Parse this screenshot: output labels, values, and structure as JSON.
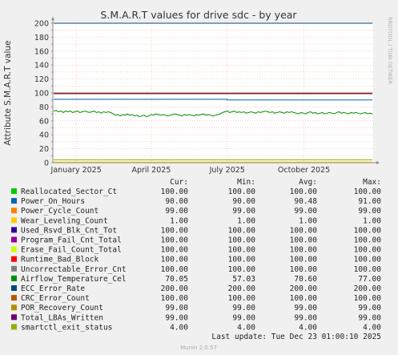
{
  "chart_data": {
    "type": "line",
    "title": "S.M.A.R.T values for drive sdc - by year",
    "ylabel": "Attribute S.M.A.R.T value",
    "xlabel": "",
    "ylim": [
      0,
      200
    ],
    "yticks": [
      0,
      10,
      20,
      30,
      40,
      50,
      60,
      70,
      80,
      90,
      100,
      110,
      120,
      130,
      140,
      150,
      160,
      170,
      180,
      190,
      200
    ],
    "xlim": [
      "2024-12-04",
      "2025-12-23"
    ],
    "xticks": [
      {
        "date": "2025-01-01",
        "label": "January 2025"
      },
      {
        "date": "2025-04-01",
        "label": "April 2025"
      },
      {
        "date": "2025-07-01",
        "label": "July 2025"
      },
      {
        "date": "2025-10-01",
        "label": "October 2025"
      }
    ],
    "grid": true,
    "side_label": "RRDTOOL / TOBI OETIKER",
    "columns": [
      "Cur:",
      "Min:",
      "Avg:",
      "Max:"
    ],
    "series": [
      {
        "name": "Reallocated_Sector_Ct",
        "color": "#00cc00",
        "cur": "100.00",
        "min": "100.00",
        "avg": "100.00",
        "max": "100.00",
        "level": 100
      },
      {
        "name": "Power_On_Hours",
        "color": "#0066b3",
        "cur": "90.00",
        "min": "90.00",
        "avg": "90.48",
        "max": "91.00",
        "level": 90,
        "step": {
          "date": "2025-07-01",
          "from": 91,
          "to": 90
        }
      },
      {
        "name": "Power_Cycle_Count",
        "color": "#ff8000",
        "cur": "99.00",
        "min": "99.00",
        "avg": "99.00",
        "max": "99.00",
        "level": 99
      },
      {
        "name": "Wear_Leveling_Count",
        "color": "#ffcc00",
        "cur": "1.00",
        "min": "1.00",
        "avg": "1.00",
        "max": "1.00",
        "level": 1
      },
      {
        "name": "Used_Rsvd_Blk_Cnt_Tot",
        "color": "#330099",
        "cur": "100.00",
        "min": "100.00",
        "avg": "100.00",
        "max": "100.00",
        "level": 100
      },
      {
        "name": "Program_Fail_Cnt_Total",
        "color": "#990099",
        "cur": "100.00",
        "min": "100.00",
        "avg": "100.00",
        "max": "100.00",
        "level": 100
      },
      {
        "name": "Erase_Fail_Count_Total",
        "color": "#ccff00",
        "cur": "100.00",
        "min": "100.00",
        "avg": "100.00",
        "max": "100.00",
        "level": 100
      },
      {
        "name": "Runtime_Bad_Block",
        "color": "#ff0000",
        "cur": "100.00",
        "min": "100.00",
        "avg": "100.00",
        "max": "100.00",
        "level": 100
      },
      {
        "name": "Uncorrectable_Error_Cnt",
        "color": "#808080",
        "cur": "100.00",
        "min": "100.00",
        "avg": "100.00",
        "max": "100.00",
        "level": 100
      },
      {
        "name": "Airflow_Temperature_Cel",
        "color": "#008f00",
        "cur": "70.05",
        "min": "57.03",
        "avg": "70.60",
        "max": "77.00",
        "level": 70
      },
      {
        "name": "ECC_Error_Rate",
        "color": "#00487d",
        "cur": "200.00",
        "min": "200.00",
        "avg": "200.00",
        "max": "200.00",
        "level": 200
      },
      {
        "name": "CRC_Error_Count",
        "color": "#b35a00",
        "cur": "100.00",
        "min": "100.00",
        "avg": "100.00",
        "max": "100.00",
        "level": 100
      },
      {
        "name": "POR_Recovery_Count",
        "color": "#b38f00",
        "cur": "99.00",
        "min": "99.00",
        "avg": "99.00",
        "max": "99.00",
        "level": 99
      },
      {
        "name": "Total_LBAs_Written",
        "color": "#6b006b",
        "cur": "99.00",
        "min": "99.00",
        "avg": "99.00",
        "max": "99.00",
        "level": 99
      },
      {
        "name": "smartctl_exit_status",
        "color": "#8fb300",
        "cur": "4.00",
        "min": "4.00",
        "avg": "4.00",
        "max": "4.00",
        "level": 4
      }
    ],
    "temperature_trace": [
      74,
      75,
      73,
      74,
      72,
      74,
      73,
      74,
      72,
      73,
      74,
      72,
      73,
      74,
      73,
      72,
      73,
      74,
      72,
      73,
      71,
      73,
      72,
      73,
      72,
      70,
      68,
      69,
      67,
      69,
      68,
      70,
      68,
      69,
      67,
      68,
      66,
      67,
      68,
      66,
      67,
      69,
      68,
      70,
      69,
      68,
      69,
      68,
      67,
      68,
      69,
      70,
      69,
      68,
      67,
      69,
      68,
      69,
      68,
      67,
      69,
      68,
      69,
      70,
      68,
      69,
      68,
      67,
      68,
      69,
      70,
      72,
      73,
      74,
      72,
      73,
      74,
      72,
      73,
      72,
      73,
      71,
      72,
      73,
      72,
      71,
      73,
      72,
      73,
      74,
      73,
      72,
      73,
      71,
      72,
      73,
      72,
      71,
      73,
      72,
      73,
      72,
      71,
      70,
      72,
      71,
      70,
      72,
      73,
      71,
      72,
      70,
      71,
      72,
      70,
      71,
      72,
      71,
      70,
      72,
      73,
      71,
      72,
      71,
      70,
      72,
      71,
      72,
      71,
      70,
      71,
      72,
      70,
      71,
      70
    ]
  },
  "footer": {
    "last_update": "Last update: Tue Dec 23 01:00:10 2025",
    "version": "Munin 2.0.57"
  }
}
